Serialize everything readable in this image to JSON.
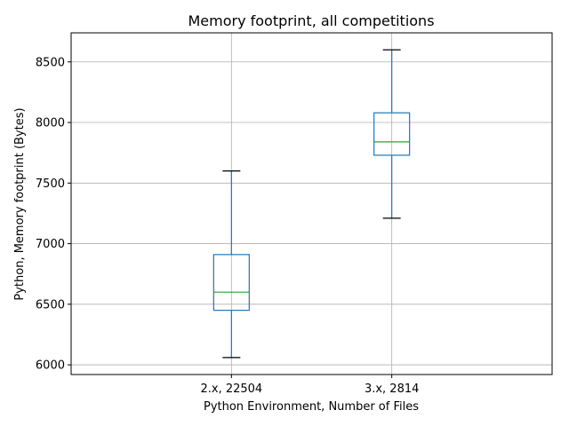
{
  "chart_data": {
    "type": "box",
    "title": "Memory footprint, all competitions",
    "xlabel": "Python Environment, Number of Files",
    "ylabel": "Python, Memory footprint (Bytes)",
    "ylim": [
      5920,
      8740
    ],
    "yticks": [
      6000,
      6500,
      7000,
      7500,
      8000,
      8500
    ],
    "grid": true,
    "categories": [
      "2.x, 22504",
      "3.x, 2814"
    ],
    "boxes": [
      {
        "category": "2.x, 22504",
        "whisker_low": 6060,
        "q1": 6450,
        "median": 6600,
        "q3": 6910,
        "whisker_high": 7600
      },
      {
        "category": "3.x, 2814",
        "whisker_low": 7210,
        "q1": 7730,
        "median": 7840,
        "q3": 8080,
        "whisker_high": 8600
      }
    ],
    "colors": {
      "box": "#1f77b4",
      "median": "#2ca02c",
      "cap": "#000000",
      "grid": "#b0b0b0"
    }
  }
}
